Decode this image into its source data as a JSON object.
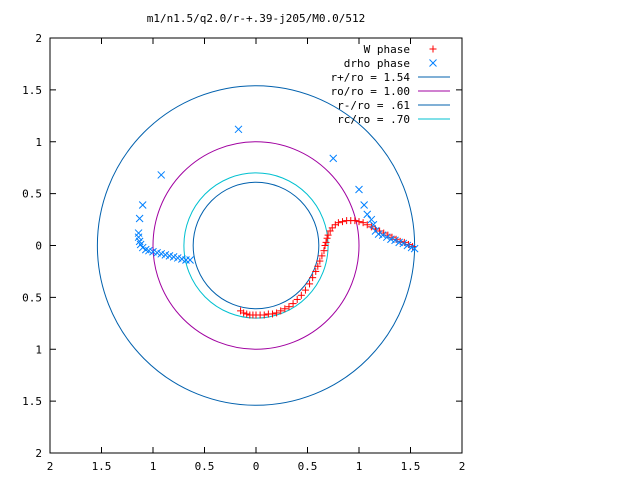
{
  "chart_data": {
    "type": "scatter",
    "title": "m1/n1.5/q2.0/r-+.39-j205/M0.0/512",
    "xlim": [
      -2,
      2
    ],
    "ylim": [
      -2,
      2
    ],
    "x_ticks": [
      -2,
      -1.5,
      -1,
      -0.5,
      0,
      0.5,
      1,
      1.5,
      2
    ],
    "y_ticks": [
      2,
      1.5,
      1,
      0.5,
      0,
      -0.5,
      -1,
      -1.5,
      -2
    ],
    "x_tick_labels": [
      "2",
      "1.5",
      "1",
      "0.5",
      "0",
      "0.5",
      "1",
      "1.5",
      "2"
    ],
    "y_tick_labels": [
      "2",
      "1.5",
      "1",
      "0.5",
      "0",
      "0.5",
      "1",
      "1.5",
      "2"
    ],
    "grid": false,
    "legend_position": "top-right",
    "series": [
      {
        "name": "W phase",
        "marker": "plus",
        "color": "#ff0000",
        "points": [
          [
            -0.15,
            -0.63
          ],
          [
            -0.12,
            -0.65
          ],
          [
            -0.09,
            -0.66
          ],
          [
            -0.06,
            -0.67
          ],
          [
            -0.03,
            -0.67
          ],
          [
            0.0,
            -0.67
          ],
          [
            0.04,
            -0.67
          ],
          [
            0.08,
            -0.67
          ],
          [
            0.12,
            -0.66
          ],
          [
            0.16,
            -0.66
          ],
          [
            0.2,
            -0.65
          ],
          [
            0.24,
            -0.63
          ],
          [
            0.28,
            -0.61
          ],
          [
            0.32,
            -0.59
          ],
          [
            0.36,
            -0.56
          ],
          [
            0.4,
            -0.52
          ],
          [
            0.44,
            -0.48
          ],
          [
            0.48,
            -0.43
          ],
          [
            0.52,
            -0.37
          ],
          [
            0.55,
            -0.31
          ],
          [
            0.58,
            -0.25
          ],
          [
            0.6,
            -0.2
          ],
          [
            0.62,
            -0.15
          ],
          [
            0.64,
            -0.1
          ],
          [
            0.66,
            -0.05
          ],
          [
            0.67,
            0.0
          ],
          [
            0.68,
            0.03
          ],
          [
            0.69,
            0.07
          ],
          [
            0.7,
            0.1
          ],
          [
            0.72,
            0.14
          ],
          [
            0.74,
            0.17
          ],
          [
            0.77,
            0.2
          ],
          [
            0.8,
            0.22
          ],
          [
            0.84,
            0.23
          ],
          [
            0.88,
            0.24
          ],
          [
            0.92,
            0.24
          ],
          [
            0.96,
            0.24
          ],
          [
            1.0,
            0.23
          ],
          [
            1.04,
            0.22
          ],
          [
            1.08,
            0.2
          ],
          [
            1.12,
            0.18
          ],
          [
            1.16,
            0.16
          ],
          [
            1.2,
            0.14
          ],
          [
            1.24,
            0.12
          ],
          [
            1.28,
            0.1
          ],
          [
            1.32,
            0.08
          ],
          [
            1.36,
            0.06
          ],
          [
            1.4,
            0.04
          ],
          [
            1.44,
            0.03
          ],
          [
            1.48,
            0.01
          ],
          [
            1.52,
            -0.01
          ]
        ]
      },
      {
        "name": "drho phase",
        "marker": "cross",
        "color": "#0080ff",
        "points": [
          [
            -1.13,
            0.26
          ],
          [
            -1.1,
            0.39
          ],
          [
            -0.92,
            0.68
          ],
          [
            -0.17,
            1.12
          ],
          [
            0.75,
            0.84
          ],
          [
            1.0,
            0.54
          ],
          [
            1.05,
            0.39
          ],
          [
            1.08,
            0.3
          ],
          [
            -1.14,
            0.12
          ],
          [
            -1.14,
            0.08
          ],
          [
            -1.13,
            0.04
          ],
          [
            -1.12,
            0.01
          ],
          [
            -1.1,
            -0.02
          ],
          [
            -1.07,
            -0.04
          ],
          [
            -1.04,
            -0.05
          ],
          [
            -1.0,
            -0.06
          ],
          [
            -0.96,
            -0.07
          ],
          [
            -0.92,
            -0.08
          ],
          [
            -0.88,
            -0.09
          ],
          [
            -0.84,
            -0.1
          ],
          [
            -0.8,
            -0.11
          ],
          [
            -0.76,
            -0.12
          ],
          [
            -0.72,
            -0.13
          ],
          [
            -0.68,
            -0.14
          ],
          [
            -0.64,
            -0.14
          ],
          [
            1.12,
            0.25
          ],
          [
            1.14,
            0.2
          ],
          [
            1.16,
            0.14
          ],
          [
            1.19,
            0.11
          ],
          [
            1.23,
            0.1
          ],
          [
            1.27,
            0.08
          ],
          [
            1.31,
            0.06
          ],
          [
            1.35,
            0.05
          ],
          [
            1.39,
            0.03
          ],
          [
            1.43,
            0.02
          ],
          [
            1.47,
            0.0
          ],
          [
            1.51,
            -0.02
          ],
          [
            1.54,
            -0.03
          ]
        ]
      }
    ],
    "circles": [
      {
        "name": "r+/ro = 1.54",
        "radius": 1.54,
        "color": "#0060ad"
      },
      {
        "name": "ro/ro = 1.00",
        "radius": 1.0,
        "color": "#a000a0"
      },
      {
        "name": "r-/ro = .61",
        "radius": 0.61,
        "color": "#0060ad"
      },
      {
        "name": "rc/ro = .70",
        "radius": 0.7,
        "color": "#00c0d0"
      }
    ]
  }
}
